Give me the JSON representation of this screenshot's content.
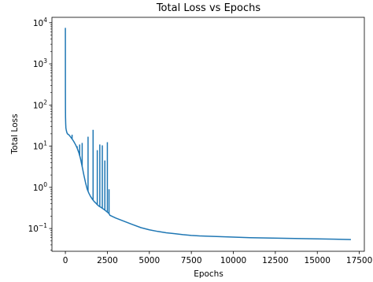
{
  "chart_data": {
    "type": "line",
    "title": "Total Loss vs Epochs",
    "xlabel": "Epochs",
    "ylabel": "Total Loss",
    "xlim": [
      -800,
      17800
    ],
    "ylim": [
      0.028,
      13500
    ],
    "yscale": "log",
    "grid": false,
    "line_color": "#1f77b4",
    "x_ticks": [
      0,
      2500,
      5000,
      7500,
      10000,
      12500,
      15000,
      17500
    ],
    "x_tick_labels": [
      "0",
      "2500",
      "5000",
      "7500",
      "10000",
      "12500",
      "15000",
      "17500"
    ],
    "y_ticks": [
      0.1,
      1,
      10,
      100,
      1000,
      10000
    ],
    "y_tick_labels": [
      [
        "10",
        "−1"
      ],
      [
        "10",
        "0"
      ],
      [
        "10",
        "1"
      ],
      [
        "10",
        "2"
      ],
      [
        "10",
        "3"
      ],
      [
        "10",
        "4"
      ]
    ],
    "series": [
      {
        "x": [
          0,
          3,
          6,
          10,
          20,
          30,
          50,
          80,
          120,
          200,
          300,
          400,
          500,
          600,
          700,
          800,
          900,
          1000,
          1100,
          1200,
          1300,
          1400,
          1500,
          1600,
          1700,
          1800,
          1900,
          2000,
          2100,
          2200,
          2300,
          2400,
          2500,
          2600,
          2650,
          3000,
          3500,
          4000,
          4500,
          5000,
          5500,
          6000,
          6500,
          7000,
          7500,
          8000,
          9000,
          10000,
          11000,
          12000,
          13000,
          14000,
          15000,
          16000,
          17000
        ],
        "y": [
          7500,
          200,
          80,
          50,
          35,
          28,
          25,
          22,
          20,
          19,
          17,
          15,
          13,
          11,
          9,
          7,
          5,
          3.2,
          2.0,
          1.3,
          0.9,
          0.72,
          0.6,
          0.52,
          0.46,
          0.42,
          0.38,
          0.35,
          0.33,
          0.31,
          0.29,
          0.27,
          0.25,
          0.23,
          0.21,
          0.18,
          0.15,
          0.125,
          0.105,
          0.093,
          0.085,
          0.079,
          0.075,
          0.071,
          0.068,
          0.066,
          0.064,
          0.062,
          0.06,
          0.059,
          0.058,
          0.057,
          0.056,
          0.055,
          0.054
        ]
      }
    ],
    "spikes": [
      {
        "x": 400,
        "y": 19
      },
      {
        "x": 700,
        "y": 10
      },
      {
        "x": 850,
        "y": 11
      },
      {
        "x": 1000,
        "y": 12
      },
      {
        "x": 1350,
        "y": 17
      },
      {
        "x": 1650,
        "y": 25
      },
      {
        "x": 1900,
        "y": 8
      },
      {
        "x": 2050,
        "y": 11
      },
      {
        "x": 2200,
        "y": 10.5
      },
      {
        "x": 2350,
        "y": 4.5
      },
      {
        "x": 2500,
        "y": 12.5
      },
      {
        "x": 2600,
        "y": 0.9
      }
    ]
  }
}
